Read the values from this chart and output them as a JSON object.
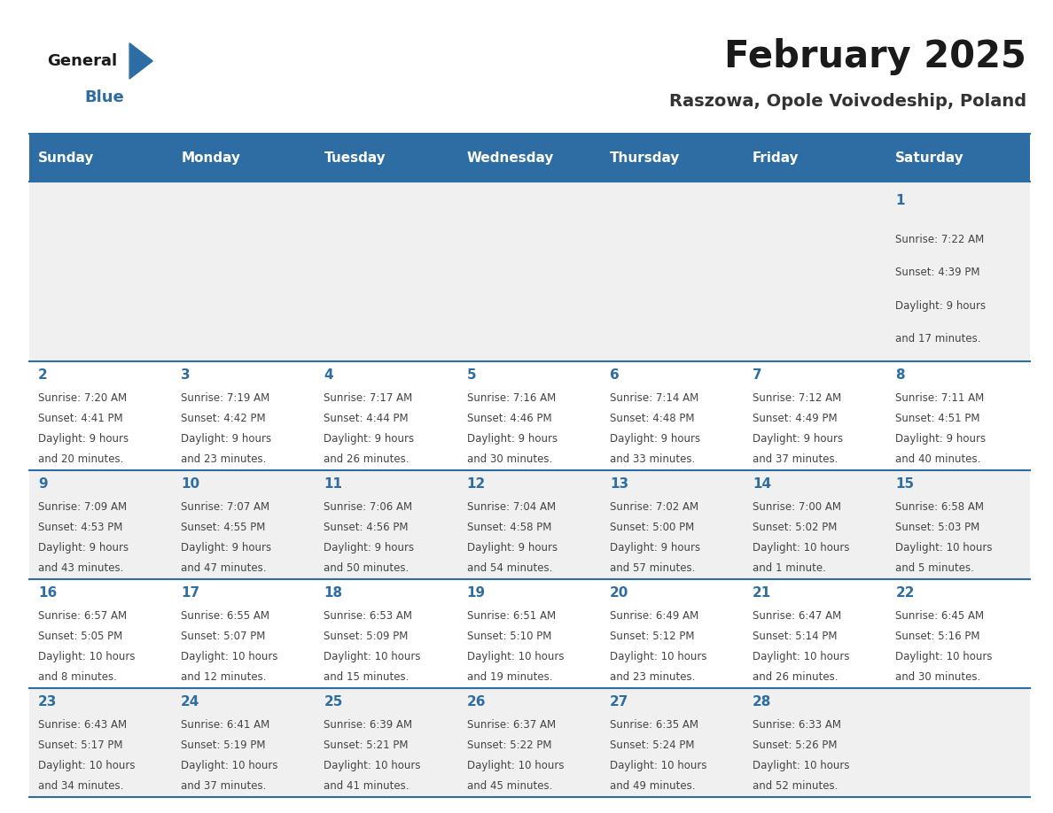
{
  "title": "February 2025",
  "subtitle": "Raszowa, Opole Voivodeship, Poland",
  "days_of_week": [
    "Sunday",
    "Monday",
    "Tuesday",
    "Wednesday",
    "Thursday",
    "Friday",
    "Saturday"
  ],
  "header_bg": "#2E6DA4",
  "header_text": "#FFFFFF",
  "cell_bg_even": "#F0F0F0",
  "cell_bg_odd": "#FFFFFF",
  "row_border_color": "#2E6DA4",
  "day_number_color": "#2E6DA4",
  "cell_text_color": "#444444",
  "title_color": "#1a1a1a",
  "subtitle_color": "#333333",
  "logo_general_color": "#1a1a1a",
  "logo_blue_color": "#2E6DA4",
  "fig_width": 11.88,
  "fig_height": 9.18,
  "calendar_data": [
    [
      null,
      null,
      null,
      null,
      null,
      null,
      {
        "day": 1,
        "sunrise": "7:22 AM",
        "sunset": "4:39 PM",
        "daylight": "9 hours and 17 minutes."
      }
    ],
    [
      {
        "day": 2,
        "sunrise": "7:20 AM",
        "sunset": "4:41 PM",
        "daylight": "9 hours and 20 minutes."
      },
      {
        "day": 3,
        "sunrise": "7:19 AM",
        "sunset": "4:42 PM",
        "daylight": "9 hours and 23 minutes."
      },
      {
        "day": 4,
        "sunrise": "7:17 AM",
        "sunset": "4:44 PM",
        "daylight": "9 hours and 26 minutes."
      },
      {
        "day": 5,
        "sunrise": "7:16 AM",
        "sunset": "4:46 PM",
        "daylight": "9 hours and 30 minutes."
      },
      {
        "day": 6,
        "sunrise": "7:14 AM",
        "sunset": "4:48 PM",
        "daylight": "9 hours and 33 minutes."
      },
      {
        "day": 7,
        "sunrise": "7:12 AM",
        "sunset": "4:49 PM",
        "daylight": "9 hours and 37 minutes."
      },
      {
        "day": 8,
        "sunrise": "7:11 AM",
        "sunset": "4:51 PM",
        "daylight": "9 hours and 40 minutes."
      }
    ],
    [
      {
        "day": 9,
        "sunrise": "7:09 AM",
        "sunset": "4:53 PM",
        "daylight": "9 hours and 43 minutes."
      },
      {
        "day": 10,
        "sunrise": "7:07 AM",
        "sunset": "4:55 PM",
        "daylight": "9 hours and 47 minutes."
      },
      {
        "day": 11,
        "sunrise": "7:06 AM",
        "sunset": "4:56 PM",
        "daylight": "9 hours and 50 minutes."
      },
      {
        "day": 12,
        "sunrise": "7:04 AM",
        "sunset": "4:58 PM",
        "daylight": "9 hours and 54 minutes."
      },
      {
        "day": 13,
        "sunrise": "7:02 AM",
        "sunset": "5:00 PM",
        "daylight": "9 hours and 57 minutes."
      },
      {
        "day": 14,
        "sunrise": "7:00 AM",
        "sunset": "5:02 PM",
        "daylight": "10 hours and 1 minute."
      },
      {
        "day": 15,
        "sunrise": "6:58 AM",
        "sunset": "5:03 PM",
        "daylight": "10 hours and 5 minutes."
      }
    ],
    [
      {
        "day": 16,
        "sunrise": "6:57 AM",
        "sunset": "5:05 PM",
        "daylight": "10 hours and 8 minutes."
      },
      {
        "day": 17,
        "sunrise": "6:55 AM",
        "sunset": "5:07 PM",
        "daylight": "10 hours and 12 minutes."
      },
      {
        "day": 18,
        "sunrise": "6:53 AM",
        "sunset": "5:09 PM",
        "daylight": "10 hours and 15 minutes."
      },
      {
        "day": 19,
        "sunrise": "6:51 AM",
        "sunset": "5:10 PM",
        "daylight": "10 hours and 19 minutes."
      },
      {
        "day": 20,
        "sunrise": "6:49 AM",
        "sunset": "5:12 PM",
        "daylight": "10 hours and 23 minutes."
      },
      {
        "day": 21,
        "sunrise": "6:47 AM",
        "sunset": "5:14 PM",
        "daylight": "10 hours and 26 minutes."
      },
      {
        "day": 22,
        "sunrise": "6:45 AM",
        "sunset": "5:16 PM",
        "daylight": "10 hours and 30 minutes."
      }
    ],
    [
      {
        "day": 23,
        "sunrise": "6:43 AM",
        "sunset": "5:17 PM",
        "daylight": "10 hours and 34 minutes."
      },
      {
        "day": 24,
        "sunrise": "6:41 AM",
        "sunset": "5:19 PM",
        "daylight": "10 hours and 37 minutes."
      },
      {
        "day": 25,
        "sunrise": "6:39 AM",
        "sunset": "5:21 PM",
        "daylight": "10 hours and 41 minutes."
      },
      {
        "day": 26,
        "sunrise": "6:37 AM",
        "sunset": "5:22 PM",
        "daylight": "10 hours and 45 minutes."
      },
      {
        "day": 27,
        "sunrise": "6:35 AM",
        "sunset": "5:24 PM",
        "daylight": "10 hours and 49 minutes."
      },
      {
        "day": 28,
        "sunrise": "6:33 AM",
        "sunset": "5:26 PM",
        "daylight": "10 hours and 52 minutes."
      },
      null
    ]
  ]
}
